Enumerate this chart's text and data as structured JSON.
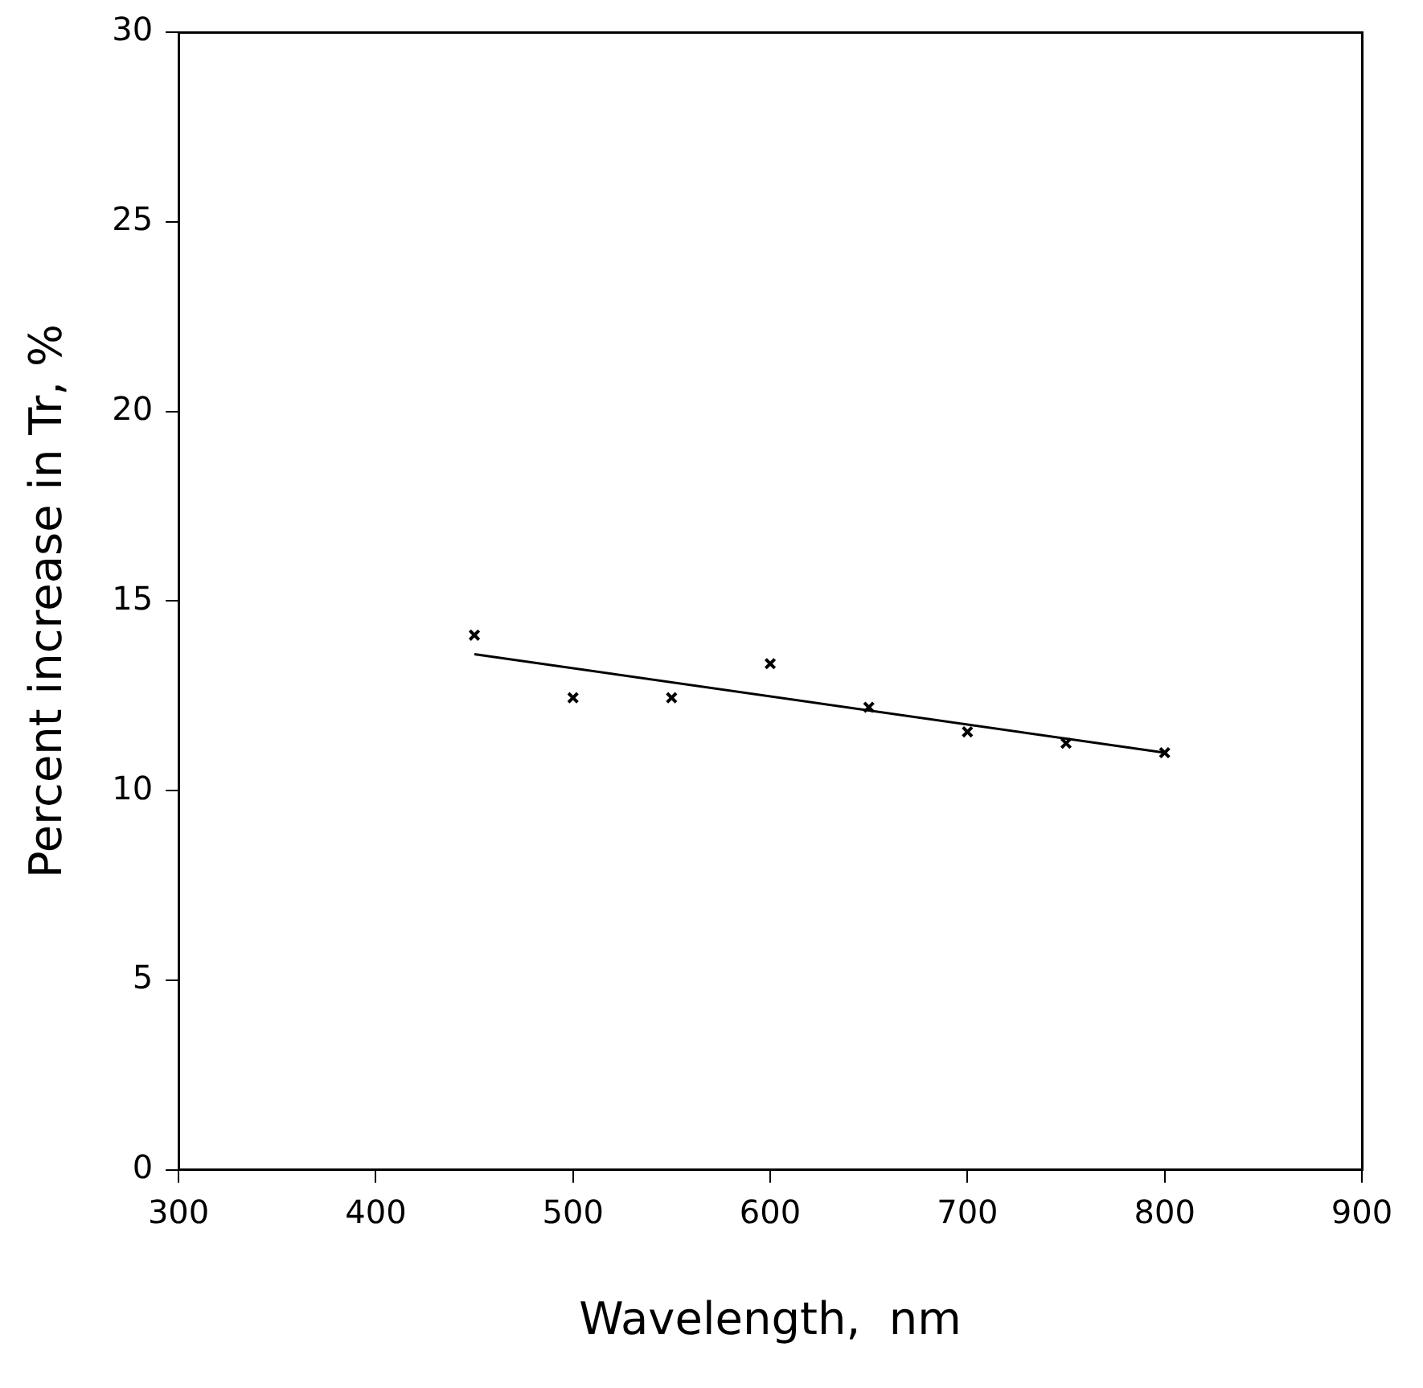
{
  "chart_data": {
    "type": "scatter",
    "xlabel": "Wavelength,  nm",
    "ylabel": "Percent increase in Tr, %",
    "marker": "cross",
    "grid": false,
    "legend": false,
    "series": [
      {
        "color": "#000000",
        "x": [
          450,
          500,
          550,
          600,
          650,
          700,
          750,
          800
        ],
        "values": [
          14.1,
          12.45,
          12.45,
          13.35,
          12.2,
          11.55,
          11.25,
          11.0
        ]
      },
      {
        "type": "line",
        "color": "#000000",
        "x": [
          450,
          800
        ],
        "values": [
          13.6,
          11.0
        ],
        "marker": "none"
      }
    ],
    "xlim": [
      300,
      900
    ],
    "xticks": [
      300,
      400,
      500,
      600,
      700,
      800,
      900
    ],
    "ylim": [
      0,
      30
    ],
    "yticks": [
      0,
      5,
      10,
      15,
      20,
      25,
      30
    ]
  }
}
